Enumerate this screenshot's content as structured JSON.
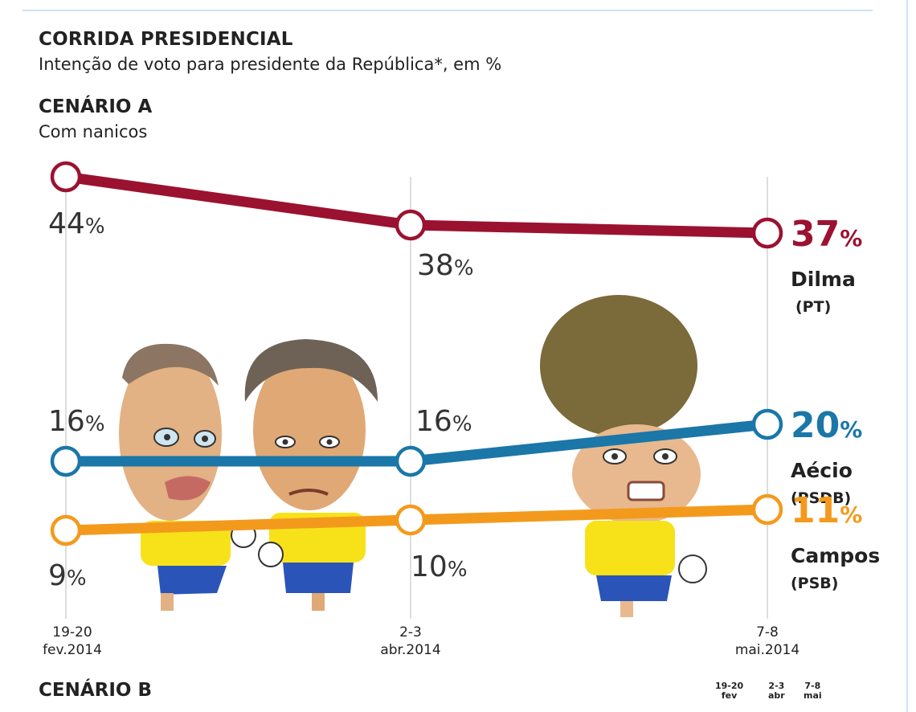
{
  "header": {
    "title": "CORRIDA PRESIDENCIAL",
    "subtitle": "Intenção de voto para presidente da República*, em %"
  },
  "scenario_a": {
    "title": "CENÁRIO A",
    "subtitle": "Com nanicos"
  },
  "scenario_b": {
    "title": "CENÁRIO B",
    "mini_dates": [
      "19-20\nfev",
      "2-3\nabr",
      "7-8\nmai"
    ]
  },
  "chart_data": {
    "type": "line",
    "title": "CORRIDA PRESIDENCIAL",
    "subtitle": "Intenção de voto para presidente da República*, em %",
    "categories": [
      "19-20 fev.2014",
      "2-3 abr.2014",
      "7-8 mai.2014"
    ],
    "category_labels": [
      [
        "19-20",
        "fev.2014"
      ],
      [
        "2-3",
        "abr.2014"
      ],
      [
        "7-8",
        "mai.2014"
      ]
    ],
    "grid": "vertical lines at each survey date",
    "series": [
      {
        "name": "Dilma",
        "party": "(PT)",
        "values": [
          44,
          38,
          37
        ],
        "color": "#9b1230"
      },
      {
        "name": "Aécio",
        "party": "(PSDB)",
        "values": [
          16,
          16,
          20
        ],
        "color": "#1a77a8"
      },
      {
        "name": "Campos",
        "party": "(PSB)",
        "values": [
          9,
          10,
          11
        ],
        "color": "#f39a1d"
      }
    ],
    "labels": {
      "Dilma": [
        "44",
        "38",
        "37"
      ],
      "Aécio": [
        "16",
        "16",
        "20"
      ],
      "Campos": [
        "9",
        "10",
        "11"
      ]
    },
    "percent_sign": "%",
    "illustration": "caricatures of the three candidates in yellow football shirts"
  }
}
